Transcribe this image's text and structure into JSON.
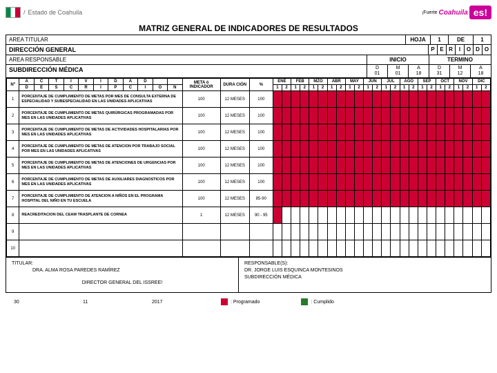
{
  "header": {
    "state": "Estado de Coahuila",
    "brand_pre": "¡Fuerte",
    "brand_mid": "Coahuila",
    "brand_es": "es!"
  },
  "title": "MATRIZ GENERAL DE INDICADORES DE RESULTADOS",
  "bars": {
    "area_titular_label": "AREA TITULAR",
    "hoja_label": "HOJA",
    "hoja": "1",
    "de_label": "DE",
    "de": "1",
    "direccion": "DIRECCIÓN GENERAL",
    "periodo": "PERIODO",
    "area_resp_label": "AREA RESPONSABLE",
    "inicio": "INICIO",
    "termino": "TERMINO",
    "subdir": "SUBDIRECCIÓN MÉDICA",
    "d1": {
      "a": "D",
      "b": "01"
    },
    "m1": {
      "a": "M",
      "b": "01"
    },
    "a1": {
      "a": "A",
      "b": "18"
    },
    "d2": {
      "a": "D",
      "b": "31"
    },
    "m2": {
      "a": "M",
      "b": "12"
    },
    "a2": {
      "a": "A",
      "b": "18"
    }
  },
  "cols": {
    "r1": [
      "A",
      "C",
      "T",
      "I",
      "V",
      "I",
      "D",
      "A",
      "D"
    ],
    "r2": [
      "D",
      "E",
      "S",
      "C",
      "R",
      "I",
      "P",
      "C",
      "I",
      "Ó",
      "N"
    ],
    "num": "Nº",
    "meta": "META ó INDICADOR",
    "dura": "DURA CIÓN",
    "pct": "%",
    "months": [
      "ENE",
      "FEB",
      "MZO",
      "ABR",
      "MAY",
      "JUN",
      "JUL",
      "AGO",
      "SEP",
      "OCT",
      "NOV",
      "DIC"
    ]
  },
  "rows": [
    {
      "n": "1",
      "d": "PORCENTAJE DE CUMPLIMIENTO DE METAS POR MES DE CONSULTA EXTERNA DE ESPECIALIDAD Y SUBESPECIALIDAD EN LAS UNIDADES APLICATIVAS",
      "m": "100",
      "du": "12 MESES",
      "p": "100",
      "k": "r"
    },
    {
      "n": "2",
      "d": "PORCENTAJE DE CUMPLIMIENTO DE METAS QUIRÚRGICAS PROGRAMADAS POR MES EN LAS UNIDADES APLICATIVAS",
      "m": "100",
      "du": "12 MESES",
      "p": "100",
      "k": "r"
    },
    {
      "n": "3",
      "d": "PORCENTAJE DE CUMPLIMIENTO DE METAS DE ACTIVIDADES HOSPITALARIAS POR MES EN LAS UNIDADES APLICATIVAS",
      "m": "100",
      "du": "12 MESES",
      "p": "100",
      "k": "r"
    },
    {
      "n": "4",
      "d": "PORCENTAJE DE CUMPLIMIENTO DE METAS DE ATENCION POR TRABAJO SOCIAL POR MES EN LAS UNIDADES APLICATIVAS",
      "m": "100",
      "du": "12 MESES",
      "p": "100",
      "k": "r"
    },
    {
      "n": "5",
      "d": "PORCENTAJE DE CUMPLIMIENTO DE METAS DE ATENCIONES DE URGENCIAS POR MES EN LAS UNIDADES APLICATIVAS",
      "m": "100",
      "du": "12 MESES",
      "p": "100",
      "k": "r"
    },
    {
      "n": "6",
      "d": "PORCENTAJE DE CUMPLIMIENTO DE METAS DE AUXILIARES DIAGNOSTICOS POR MES EN LAS UNIDADES APLICATIVAS",
      "m": "100",
      "du": "12 MESES",
      "p": "100",
      "k": "r"
    },
    {
      "n": "7",
      "d": "PORCENTAJE DE CUMPLIMIENTO DE ATENCION A NIÑOS EN EL PROGRAMA HOSPITAL DEL NIÑO EN TU ESCUELA",
      "m": "100",
      "du": "12 MESES",
      "p": "85-90",
      "k": "r"
    },
    {
      "n": "8",
      "d": "REACREDITACION DEL CEAM TRASPLANTE DE CORNEA",
      "m": "1",
      "du": "12 MESES",
      "p": "90 - 95",
      "k": "p"
    },
    {
      "n": "9",
      "d": "",
      "m": "",
      "du": "",
      "p": "",
      "k": "e"
    },
    {
      "n": "10",
      "d": "",
      "m": "",
      "du": "",
      "p": "",
      "k": "e"
    }
  ],
  "footer": {
    "tit_label": "TITULAR:",
    "tit": "DRA. ALMA ROSA PAREDES RAMÍREZ",
    "resp_label": "RESPONSABLE(S):",
    "resp1": "DR. JORGE LUIS ESQUINCA MONTESINOS",
    "resp2": "SUBDIRECCIÓN MÉDICA",
    "dir": "DIRECTOR GENERAL DEL ISSREE!"
  },
  "legend": {
    "d": "30",
    "m": "11",
    "y": "2017",
    "prog": ": Programado",
    "cump": ": Cumplido"
  }
}
